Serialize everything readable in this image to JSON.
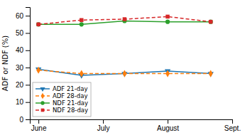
{
  "chart_data": {
    "type": "line",
    "x": [
      0,
      1,
      2,
      3,
      4
    ],
    "xlim": [
      -0.2,
      4.5
    ],
    "xticks": [
      {
        "value": 0,
        "label": "June"
      },
      {
        "value": 1.5,
        "label": "July"
      },
      {
        "value": 3,
        "label": "August"
      },
      {
        "value": 4.5,
        "label": "Sept."
      }
    ],
    "ylabel": "ADF or NDF (%)",
    "ylim": [
      0,
      65
    ],
    "yticks": [
      0,
      10,
      20,
      30,
      40,
      50,
      60
    ],
    "legend": "lower left",
    "series": [
      {
        "name": "ADF 21-day",
        "marker": "triangle-down",
        "line_style": "solid",
        "values": [
          29.0,
          25.5,
          26.5,
          28.0,
          26.5
        ]
      },
      {
        "name": "ADF 28-day",
        "marker": "diamond",
        "line_style": "dashed",
        "values": [
          28.5,
          26.5,
          26.5,
          26.5,
          26.5
        ]
      },
      {
        "name": "NDF 21-day",
        "marker": "circle",
        "line_style": "solid",
        "values": [
          55.0,
          55.0,
          57.0,
          56.5,
          56.5
        ]
      },
      {
        "name": "NDF 28-day",
        "marker": "square",
        "line_style": "dashed",
        "values": [
          55.0,
          57.5,
          58.0,
          59.5,
          56.5
        ]
      }
    ]
  }
}
